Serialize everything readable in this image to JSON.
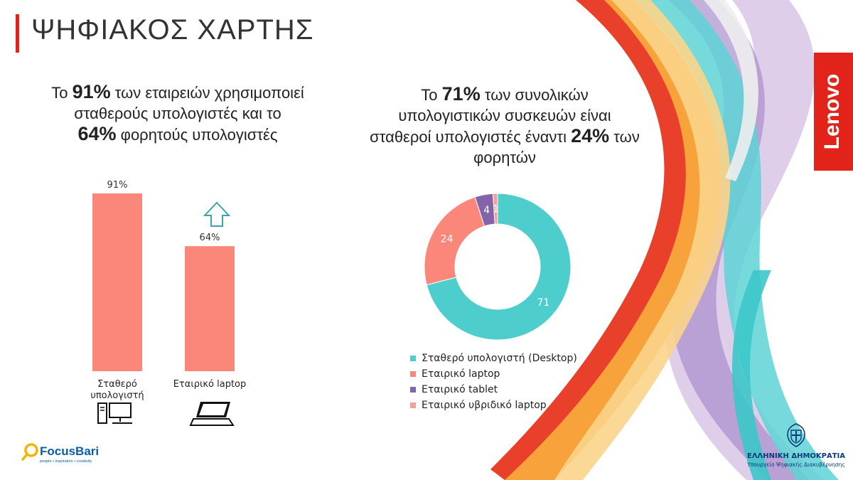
{
  "page_title": "ΨΗΦΙΑΚΟΣ ΧΑΡΤΗΣ",
  "brand_colors": {
    "accent_red": "#e2231a",
    "bar": "#fa877a",
    "teal": "#4ecdcd",
    "purple": "#8364a8",
    "pink": "#f4a09a",
    "navy": "#0d3b7a"
  },
  "left_headline": {
    "p1": "Το ",
    "b1": "91%",
    "p2": " των εταιρειών χρησιμοποιεί σταθερούς υπολογιστές και το ",
    "b2": "64%",
    "p3": " φορητούς υπολογιστές"
  },
  "right_headline": {
    "p1": "Το ",
    "b1": "71%",
    "p2": " των συνολικών υπολογιστικών συσκευών είναι σταθεροί υπολογιστές έναντι ",
    "b2": "24%",
    "p3": " των φορητών"
  },
  "icons": [
    "up-arrow-icon",
    "desktop-computer-icon",
    "laptop-icon",
    "magnifier-icon",
    "coat-of-arms-icon"
  ],
  "chart_data": [
    {
      "type": "bar",
      "categories": [
        "Σταθερό υπολογιστή",
        "Εταιρικό laptop"
      ],
      "values": [
        91,
        64
      ],
      "data_labels": [
        "91%",
        "64%"
      ],
      "ylim": [
        0,
        100
      ],
      "grid": false
    },
    {
      "type": "pie",
      "donut": true,
      "series": [
        {
          "name": "Σταθερό υπολογιστή (Desktop)",
          "value": 71,
          "label": "71",
          "color": "#4ecdcd"
        },
        {
          "name": "Εταιρικό laptop",
          "value": 24,
          "label": "24",
          "color": "#fa877a"
        },
        {
          "name": "Εταιρικό tablet",
          "value": 4,
          "label": "4",
          "color": "#8364a8"
        },
        {
          "name": "Εταιρικό υβριδικό laptop",
          "value": 1,
          "label": "1",
          "color": "#f4a09a"
        }
      ],
      "legend_position": "bottom"
    }
  ],
  "logos": {
    "lenovo": "Lenovo",
    "focusbari_name": "FocusBari",
    "focusbari_tagline": "people • inspiration • creativity",
    "gov_name": "ΕΛΛΗΝΙΚΗ ΔΗΜΟΚΡΑΤΙΑ",
    "gov_ministry": "Υπουργείο Ψηφιακής Διακυβέρνησης"
  }
}
